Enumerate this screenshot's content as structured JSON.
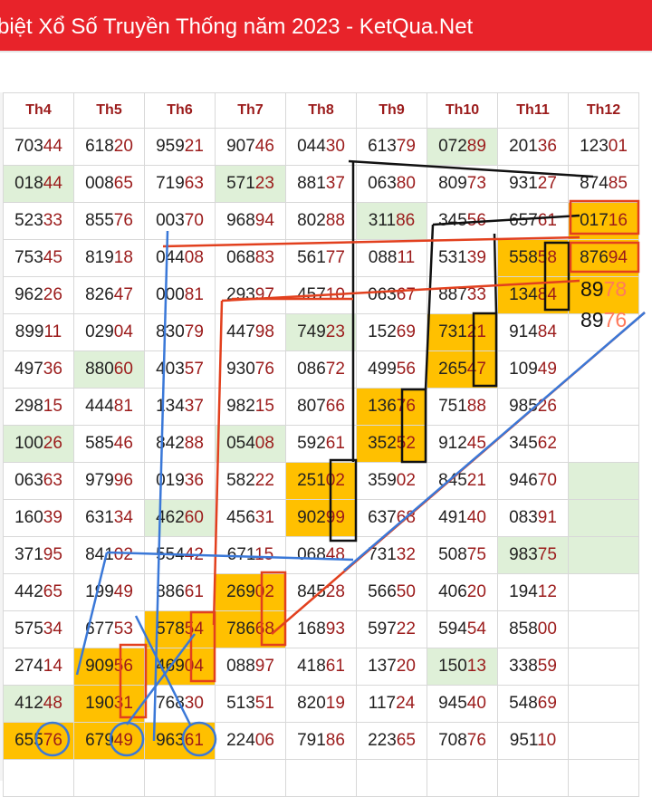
{
  "header": {
    "title": "biệt Xổ Số Truyền Thống năm 2023 - KetQua.Net"
  },
  "table": {
    "columns": [
      "Th4",
      "Th5",
      "Th6",
      "Th7",
      "Th8",
      "Th9",
      "Th10",
      "Th11",
      "Th12"
    ],
    "rows": [
      [
        "70344",
        "61820",
        "95921",
        "90746",
        "04430",
        "61379",
        "07289",
        "20136",
        "12301"
      ],
      [
        "01844",
        "00865",
        "71963",
        "57123",
        "88137",
        "06380",
        "80973",
        "93127",
        "87485"
      ],
      [
        "52333",
        "85576",
        "00370",
        "96894",
        "80288",
        "31186",
        "34556",
        "65761",
        "01716"
      ],
      [
        "75345",
        "81918",
        "04408",
        "06883",
        "56177",
        "08811",
        "53139",
        "55858",
        "87694"
      ],
      [
        "96226",
        "82647",
        "00081",
        "29397",
        "45710",
        "06367",
        "88733",
        "13484"
      ],
      [
        "89911",
        "02904",
        "83079",
        "44798",
        "74923",
        "15269",
        "73121",
        "91484"
      ],
      [
        "49736",
        "88060",
        "40357",
        "93076",
        "08672",
        "49956",
        "26547",
        "10949"
      ],
      [
        "29815",
        "44481",
        "13437",
        "98215",
        "80766",
        "13676",
        "75188",
        "98526"
      ],
      [
        "10026",
        "58546",
        "84288",
        "05408",
        "59261",
        "35252",
        "91245",
        "34562"
      ],
      [
        "06363",
        "97996",
        "01936",
        "58222",
        "25102",
        "35902",
        "84521",
        "94670"
      ],
      [
        "16039",
        "63134",
        "46260",
        "45631",
        "90299",
        "63768",
        "49140",
        "08391"
      ],
      [
        "37195",
        "84102",
        "55442",
        "67115",
        "06848",
        "73132",
        "50875",
        "98375"
      ],
      [
        "44265",
        "19949",
        "88661",
        "26902",
        "84528",
        "56650",
        "40620",
        "19412"
      ],
      [
        "57534",
        "67753",
        "57854",
        "78668",
        "16893",
        "59722",
        "59454",
        "85800"
      ],
      [
        "27414",
        "90956",
        "46904",
        "08897",
        "41861",
        "13720",
        "15013",
        "33859"
      ],
      [
        "41248",
        "19031",
        "76830",
        "51351",
        "82019",
        "11724",
        "94540",
        "54869"
      ],
      [
        "65576",
        "67949",
        "96361",
        "22406",
        "79186",
        "22365",
        "70876",
        "95110"
      ]
    ]
  },
  "annotations": [
    "8978",
    "8976"
  ]
}
